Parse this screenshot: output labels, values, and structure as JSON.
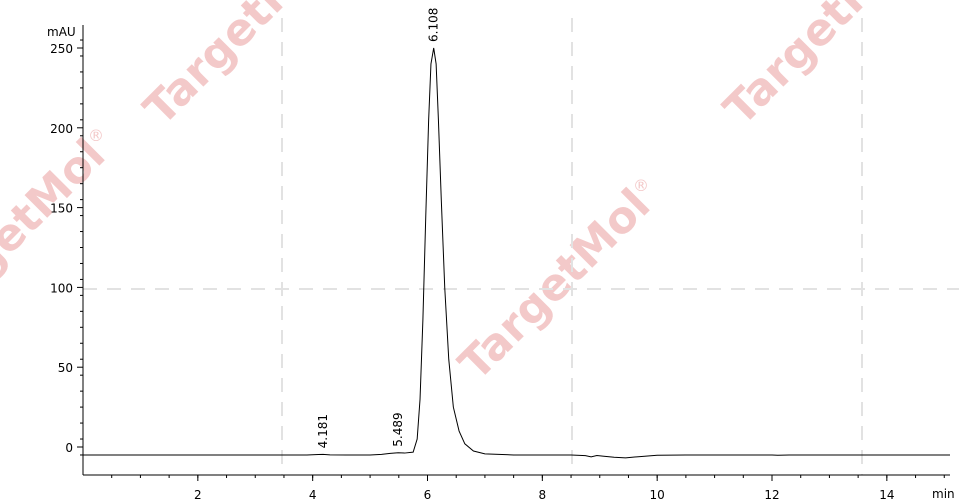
{
  "watermark": {
    "text": "TargetMol",
    "registered_mark": "®",
    "color": "#f0b8b8"
  },
  "chart_data": {
    "type": "line",
    "title": "",
    "xlabel": "min",
    "ylabel": "mAU",
    "xlim": [
      0,
      15.1
    ],
    "ylim": [
      -5,
      258
    ],
    "x_ticks": [
      2,
      4,
      6,
      8,
      10,
      12,
      14
    ],
    "x_ticklabels": [
      "2",
      "4",
      "6",
      "8",
      "10",
      "12",
      "14"
    ],
    "y_ticks": [
      0,
      50,
      100,
      150,
      200,
      250
    ],
    "y_ticklabels": [
      "0",
      "50",
      "100",
      "150",
      "200",
      "250"
    ],
    "grid": false,
    "line_color": "#000000",
    "baseline": -5,
    "peaks": [
      {
        "label": "4.181",
        "x": 4.181,
        "y": -4.6
      },
      {
        "label": "5.489",
        "x": 5.489,
        "y": -3.6
      },
      {
        "label": "6.108",
        "x": 6.108,
        "y": 250
      }
    ],
    "series": [
      {
        "values": [
          [
            0.0,
            -5.0
          ],
          [
            1.0,
            -5.0
          ],
          [
            2.0,
            -5.0
          ],
          [
            3.0,
            -5.0
          ],
          [
            3.9,
            -5.0
          ],
          [
            4.1,
            -4.7
          ],
          [
            4.181,
            -4.6
          ],
          [
            4.3,
            -4.9
          ],
          [
            4.6,
            -5.0
          ],
          [
            5.0,
            -5.0
          ],
          [
            5.2,
            -4.6
          ],
          [
            5.35,
            -4.0
          ],
          [
            5.489,
            -3.6
          ],
          [
            5.6,
            -3.8
          ],
          [
            5.75,
            -3.2
          ],
          [
            5.82,
            5
          ],
          [
            5.87,
            30
          ],
          [
            5.92,
            80
          ],
          [
            5.97,
            145
          ],
          [
            6.02,
            205
          ],
          [
            6.06,
            240
          ],
          [
            6.108,
            250
          ],
          [
            6.15,
            240
          ],
          [
            6.19,
            205
          ],
          [
            6.24,
            155
          ],
          [
            6.3,
            100
          ],
          [
            6.37,
            55
          ],
          [
            6.45,
            25
          ],
          [
            6.55,
            10
          ],
          [
            6.65,
            2
          ],
          [
            6.8,
            -2.5
          ],
          [
            7.0,
            -4.3
          ],
          [
            7.5,
            -5.0
          ],
          [
            8.0,
            -5.0
          ],
          [
            8.5,
            -5.0
          ],
          [
            8.75,
            -5.4
          ],
          [
            8.85,
            -6.2
          ],
          [
            8.95,
            -5.3
          ],
          [
            9.05,
            -5.7
          ],
          [
            9.25,
            -6.4
          ],
          [
            9.45,
            -6.8
          ],
          [
            9.7,
            -6.0
          ],
          [
            10.0,
            -5.2
          ],
          [
            10.5,
            -5.0
          ],
          [
            11.0,
            -5.0
          ],
          [
            12.0,
            -5.0
          ],
          [
            12.1,
            -5.2
          ],
          [
            12.3,
            -5.0
          ],
          [
            13.0,
            -5.0
          ],
          [
            14.0,
            -5.0
          ],
          [
            15.1,
            -5.0
          ]
        ]
      }
    ]
  }
}
